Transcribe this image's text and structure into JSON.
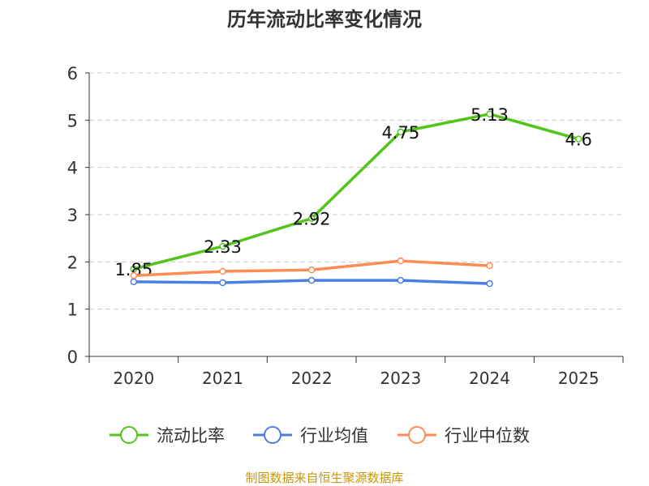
{
  "chart_data": {
    "type": "line",
    "title": "历年流动比率变化情况",
    "categories": [
      "2020",
      "2021",
      "2022",
      "2023",
      "2024",
      "2025"
    ],
    "ylim": [
      0,
      6
    ],
    "yticks": [
      "0",
      "1",
      "2",
      "3",
      "4",
      "5",
      "6"
    ],
    "grid": true,
    "legend_position": "bottom",
    "series": [
      {
        "name": "流动比率",
        "color": "#52c41a",
        "values": [
          1.85,
          2.33,
          2.92,
          4.75,
          5.13,
          4.6
        ],
        "labels": [
          "1.85",
          "2.33",
          "2.92",
          "4.75",
          "5.13",
          "4.6"
        ]
      },
      {
        "name": "行业均值",
        "color": "#4a7fe0",
        "values": [
          1.58,
          1.56,
          1.61,
          1.61,
          1.54,
          null
        ]
      },
      {
        "name": "行业中位数",
        "color": "#ff8c55",
        "values": [
          1.71,
          1.8,
          1.83,
          2.02,
          1.92,
          null
        ]
      }
    ]
  },
  "footer": "制图数据来自恒生聚源数据库"
}
